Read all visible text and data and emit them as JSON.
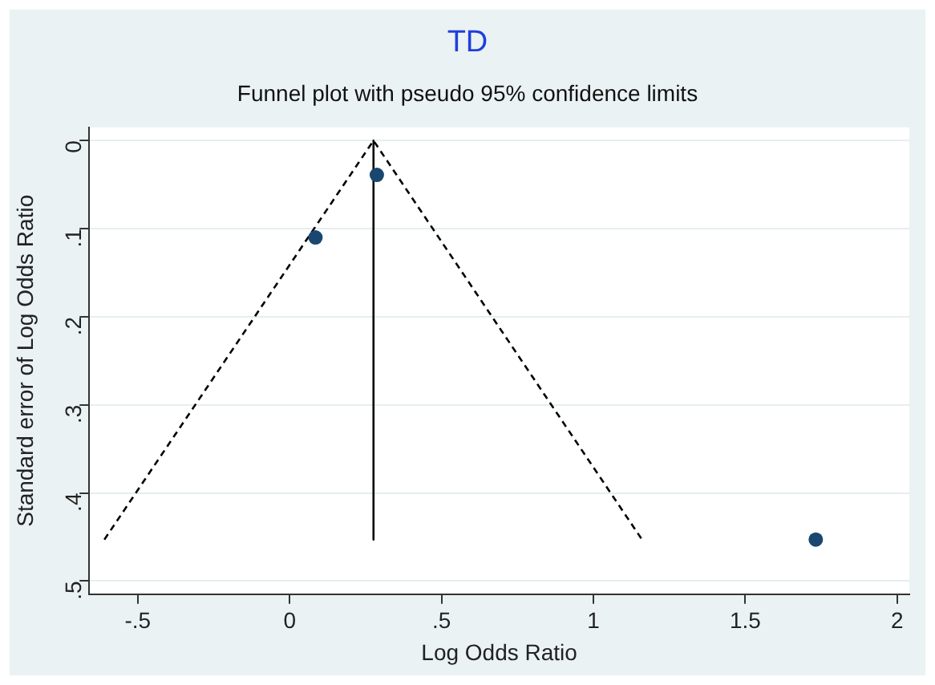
{
  "chart_data": {
    "type": "scatter",
    "title": "TD",
    "subtitle": "Funnel plot with pseudo 95% confidence limits",
    "xlabel": "Log Odds Ratio",
    "ylabel": "Standard error of Log Odds Ratio",
    "xlim": [
      -0.66,
      2.04
    ],
    "xticks": [
      {
        "value": -0.5,
        "label": "-.5"
      },
      0,
      {
        "value": 0.5,
        "label": ".5"
      },
      1,
      {
        "value": 1.5,
        "label": "1.5"
      },
      2
    ],
    "ylim": [
      0.515,
      -0.015
    ],
    "yticks": [
      0,
      {
        "value": 0.1,
        "label": ".1"
      },
      {
        "value": 0.2,
        "label": ".2"
      },
      {
        "value": 0.3,
        "label": ".3"
      },
      {
        "value": 0.4,
        "label": ".4"
      },
      {
        "value": 0.5,
        "label": ".5"
      }
    ],
    "grid": "y",
    "legend": false,
    "series": [
      {
        "type": "scatter",
        "color": "#1a476f",
        "marker": "circle",
        "x": [
          0.085,
          0.287,
          1.732
        ],
        "values": [
          0.11,
          0.039,
          0.453
        ]
      },
      {
        "type": "line",
        "color": "#000000",
        "marker": "none",
        "line_style": "dashed",
        "x": [
          -0.61,
          0.276,
          1.16
        ],
        "values": [
          0.453,
          0,
          0.453
        ]
      },
      {
        "type": "line",
        "color": "#000000",
        "marker": "none",
        "line_style": "solid",
        "x": [
          0.276,
          0.276
        ],
        "values": [
          0,
          0.453
        ]
      }
    ]
  }
}
